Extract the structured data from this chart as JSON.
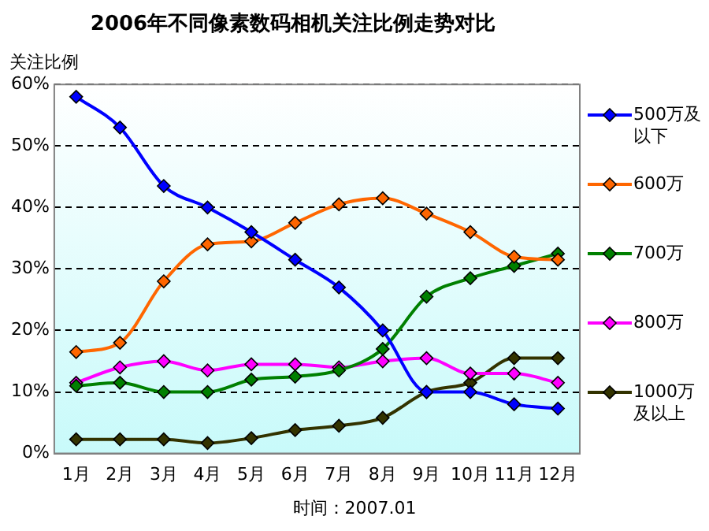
{
  "chart_data": {
    "type": "line",
    "title": "2006年不同像素数码相机关注比例走势对比",
    "ylabel": "关注比例",
    "categories": [
      "1月",
      "2月",
      "3月",
      "4月",
      "5月",
      "6月",
      "7月",
      "8月",
      "9月",
      "10月",
      "11月",
      "12月"
    ],
    "series": [
      {
        "name": "500万及以下",
        "color": "#0000ff",
        "values": [
          58,
          53,
          43.5,
          40,
          36,
          31.5,
          27,
          20,
          10,
          10,
          8,
          7.3
        ]
      },
      {
        "name": "600万",
        "color": "#ff6600",
        "values": [
          16.5,
          18,
          28,
          34,
          34.5,
          37.5,
          40.5,
          41.5,
          39,
          36,
          32,
          31.5
        ]
      },
      {
        "name": "700万",
        "color": "#008000",
        "values": [
          11,
          11.5,
          10,
          10,
          12,
          12.5,
          13.5,
          17,
          25.5,
          28.5,
          30.5,
          32.5
        ]
      },
      {
        "name": "800万",
        "color": "#ff00ff",
        "values": [
          11.5,
          14,
          15,
          13.5,
          14.5,
          14.5,
          14,
          15,
          15.5,
          13,
          13,
          11.5
        ]
      },
      {
        "name": "1000万及以上",
        "color": "#333300",
        "values": [
          2.3,
          2.3,
          2.3,
          1.7,
          2.5,
          3.8,
          4.5,
          5.8,
          10,
          11.5,
          15.5,
          15.5
        ]
      }
    ],
    "ylim": [
      0,
      60
    ],
    "yticks": [
      {
        "value": 0,
        "label": "0%"
      },
      {
        "value": 10,
        "label": "10%"
      },
      {
        "value": 20,
        "label": "20%"
      },
      {
        "value": 30,
        "label": "30%"
      },
      {
        "value": 40,
        "label": "40%"
      },
      {
        "value": 50,
        "label": "50%"
      },
      {
        "value": 60,
        "label": "60%"
      }
    ],
    "grid": "y",
    "legend": "right",
    "marker": "diamond",
    "line_style": "solid",
    "annotations": [
      "时间：2007.01"
    ]
  }
}
